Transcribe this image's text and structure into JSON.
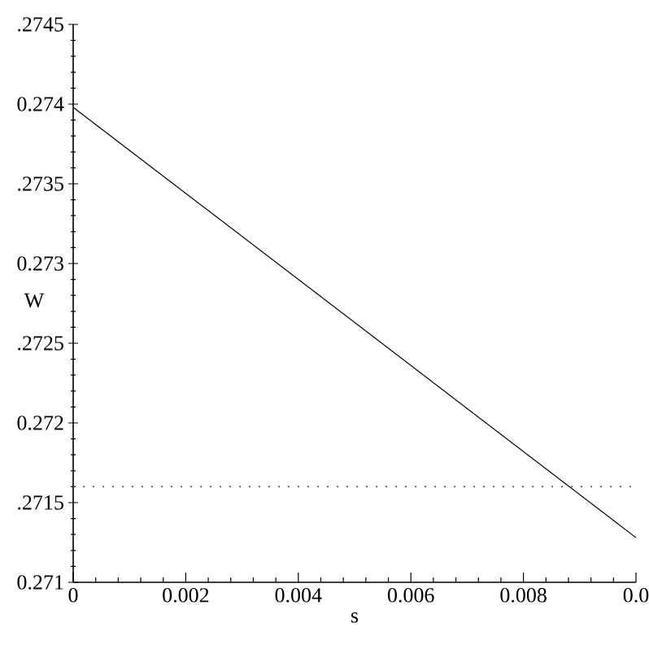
{
  "chart_data": {
    "type": "line",
    "xlabel": "s",
    "ylabel": "W",
    "series": [
      {
        "x": [
          0,
          0.01
        ],
        "values": [
          0.27398,
          0.27128
        ],
        "color": "#000000"
      }
    ],
    "xlim": [
      0,
      0.01
    ],
    "ylim": [
      0.271,
      0.2745
    ],
    "xticks": [
      0,
      0.002,
      0.004,
      0.006,
      0.008,
      {
        "value": 0.01,
        "label": "0.0"
      }
    ],
    "yticks": [
      0.271,
      {
        "value": 0.2715,
        "label": ".2715"
      },
      0.272,
      {
        "value": 0.2725,
        "label": ".2725"
      },
      0.273,
      {
        "value": 0.2735,
        "label": ".2735"
      },
      0.274,
      {
        "value": 0.2745,
        "label": ".2745"
      }
    ],
    "ref_lines": [
      {
        "axis": "y",
        "value": 0.2716,
        "line_style": "dotted",
        "color": "#555555"
      }
    ],
    "grid": false,
    "marker": "none",
    "line_style": "solid"
  }
}
